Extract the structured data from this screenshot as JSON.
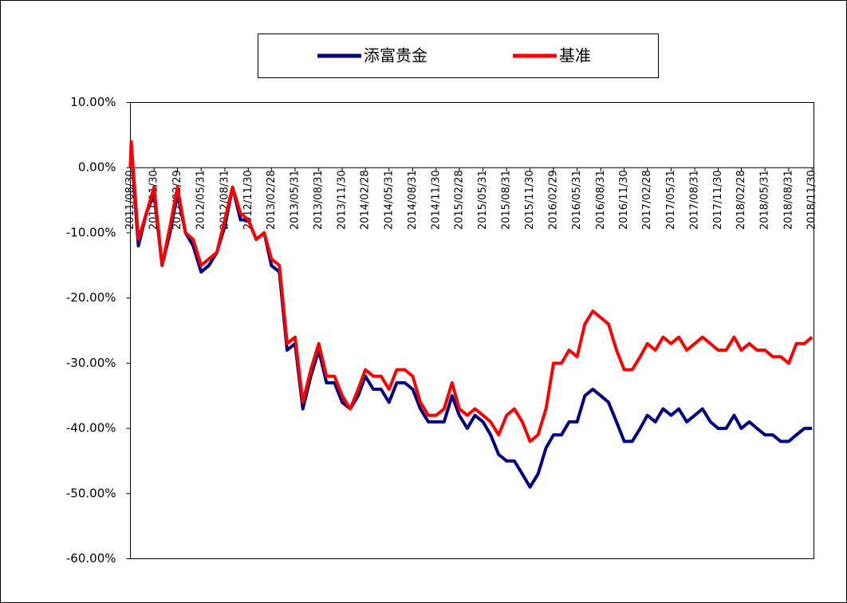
{
  "chart_data": {
    "type": "line",
    "x": [
      "2011/08/30",
      "2011/09/02",
      "2011/09/30",
      "2011/10/31",
      "2011/11/30",
      "2011/12/31",
      "2012/01/31",
      "2012/02/29",
      "2012/03/31",
      "2012/04/30",
      "2012/05/31",
      "2012/06/30",
      "2012/07/31",
      "2012/08/31",
      "2012/09/30",
      "2012/10/31",
      "2012/11/30",
      "2012/12/31",
      "2013/01/31",
      "2013/02/28",
      "2013/03/31",
      "2013/04/30",
      "2013/05/31",
      "2013/06/30",
      "2013/07/31",
      "2013/08/31",
      "2013/09/30",
      "2013/10/31",
      "2013/11/30",
      "2013/12/31",
      "2014/01/31",
      "2014/02/28",
      "2014/03/31",
      "2014/04/30",
      "2014/05/31",
      "2014/06/30",
      "2014/07/31",
      "2014/08/31",
      "2014/09/30",
      "2014/10/31",
      "2014/11/30",
      "2014/12/31",
      "2015/01/31",
      "2015/02/28",
      "2015/03/31",
      "2015/04/30",
      "2015/05/31",
      "2015/06/30",
      "2015/07/31",
      "2015/08/31",
      "2015/09/30",
      "2015/10/31",
      "2015/11/30",
      "2015/12/31",
      "2016/01/31",
      "2016/02/29",
      "2016/03/31",
      "2016/04/30",
      "2016/05/31",
      "2016/06/30",
      "2016/07/31",
      "2016/08/31",
      "2016/09/30",
      "2016/10/31",
      "2016/11/30",
      "2016/12/31",
      "2017/01/31",
      "2017/02/28",
      "2017/03/31",
      "2017/04/30",
      "2017/05/31",
      "2017/06/30",
      "2017/07/31",
      "2017/08/31",
      "2017/09/30",
      "2017/10/31",
      "2017/11/30",
      "2017/12/31",
      "2018/01/31",
      "2018/02/28",
      "2018/03/31",
      "2018/04/30",
      "2018/05/31",
      "2018/06/30",
      "2018/07/31",
      "2018/08/31",
      "2018/09/30",
      "2018/10/31",
      "2018/11/30"
    ],
    "series": [
      {
        "name": "添富贵金",
        "color": "#000080",
        "values": [
          0,
          3,
          -12,
          -7,
          -4,
          -15,
          -10,
          -4,
          -10,
          -12,
          -16,
          -15,
          -13,
          -9,
          -3,
          -8,
          -8,
          -11,
          -10,
          -15,
          -16,
          -28,
          -27,
          -37,
          -32,
          -28,
          -33,
          -33,
          -36,
          -37,
          -35,
          -32,
          -34,
          -34,
          -36,
          -33,
          -33,
          -34,
          -37,
          -39,
          -39,
          -39,
          -35,
          -38,
          -40,
          -38,
          -39,
          -41,
          -44,
          -45,
          -45,
          -47,
          -49,
          -47,
          -43,
          -41,
          -41,
          -39,
          -39,
          -35,
          -34,
          -35,
          -36,
          -39,
          -42,
          -42,
          -40,
          -38,
          -39,
          -37,
          -38,
          -37,
          -39,
          -38,
          -37,
          -39,
          -40,
          -40,
          -38,
          -40,
          -39,
          -40,
          -41,
          -41,
          -42,
          -42,
          -41,
          -40,
          -40
        ]
      },
      {
        "name": "基准",
        "color": "#ff0000",
        "values": [
          0,
          4,
          -11,
          -7,
          -3,
          -15,
          -9,
          -3,
          -10,
          -11,
          -15,
          -14,
          -13,
          -8,
          -3,
          -7,
          -8,
          -11,
          -10,
          -14,
          -15,
          -27,
          -26,
          -36,
          -31,
          -27,
          -32,
          -32,
          -35,
          -37,
          -34,
          -31,
          -32,
          -32,
          -34,
          -31,
          -31,
          -32,
          -36,
          -38,
          -38,
          -37,
          -33,
          -37,
          -38,
          -37,
          -38,
          -39,
          -41,
          -38,
          -37,
          -39,
          -42,
          -41,
          -37,
          -30,
          -30,
          -28,
          -29,
          -24,
          -22,
          -23,
          -24,
          -28,
          -31,
          -31,
          -29,
          -27,
          -28,
          -26,
          -27,
          -26,
          -28,
          -27,
          -26,
          -27,
          -28,
          -28,
          -26,
          -28,
          -27,
          -28,
          -28,
          -29,
          -29,
          -30,
          -27,
          -27,
          -26
        ]
      }
    ],
    "xlim": [
      "2011/08/30",
      "2018/12/07"
    ],
    "xticks": [
      "2011/08/30",
      "2011/11/30",
      "2012/02/29",
      "2012/05/31",
      "2012/08/31",
      "2012/11/30",
      "2013/02/28",
      "2013/05/31",
      "2013/08/31",
      "2013/11/30",
      "2014/02/28",
      "2014/05/31",
      "2014/08/31",
      "2014/11/30",
      "2015/02/28",
      "2015/05/31",
      "2015/08/31",
      "2015/11/30",
      "2016/02/29",
      "2016/05/31",
      "2016/08/31",
      "2016/11/30",
      "2017/02/28",
      "2017/05/31",
      "2017/08/31",
      "2017/11/30",
      "2018/02/28",
      "2018/05/31",
      "2018/08/31",
      "2018/11/30"
    ],
    "ylim": [
      -60,
      10
    ],
    "yticks": [
      {
        "value": -60,
        "label": "-60.00%"
      },
      {
        "value": -50,
        "label": "-50.00%"
      },
      {
        "value": -40,
        "label": "-40.00%"
      },
      {
        "value": -30,
        "label": "-30.00%"
      },
      {
        "value": -20,
        "label": "-20.00%"
      },
      {
        "value": -10,
        "label": "-10.00%"
      },
      {
        "value": 0,
        "label": "0.00%"
      },
      {
        "value": 10,
        "label": "10.00%"
      }
    ]
  }
}
